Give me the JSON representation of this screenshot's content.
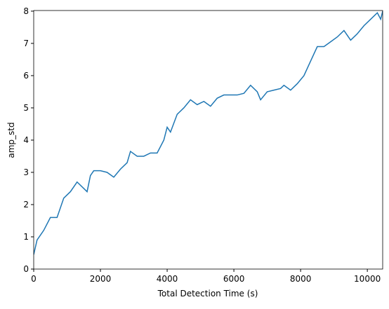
{
  "chart_data": {
    "type": "line",
    "xlabel": "Total Detection Time (s)",
    "ylabel": "amp_std",
    "x": [
      0,
      100,
      300,
      500,
      700,
      900,
      1100,
      1300,
      1500,
      1600,
      1700,
      1800,
      2000,
      2200,
      2400,
      2600,
      2800,
      2900,
      3100,
      3300,
      3500,
      3700,
      3900,
      4000,
      4100,
      4300,
      4500,
      4700,
      4900,
      5100,
      5300,
      5500,
      5700,
      5900,
      6100,
      6300,
      6500,
      6700,
      6800,
      7000,
      7200,
      7400,
      7500,
      7700,
      7900,
      8100,
      8300,
      8500,
      8700,
      8900,
      9100,
      9300,
      9500,
      9700,
      9900,
      10100,
      10300,
      10400,
      10460
    ],
    "series": [
      {
        "name": "amp_std",
        "color": "#1f77b4",
        "values": [
          0.45,
          0.9,
          1.2,
          1.6,
          1.6,
          2.2,
          2.4,
          2.7,
          2.5,
          2.4,
          2.9,
          3.05,
          3.05,
          3.0,
          2.85,
          3.1,
          3.3,
          3.65,
          3.5,
          3.5,
          3.6,
          3.6,
          4.0,
          4.4,
          4.25,
          4.8,
          5.0,
          5.25,
          5.1,
          5.2,
          5.05,
          5.3,
          5.4,
          5.4,
          5.4,
          5.45,
          5.7,
          5.5,
          5.25,
          5.5,
          5.55,
          5.6,
          5.7,
          5.55,
          5.75,
          6.0,
          6.45,
          6.9,
          6.9,
          7.05,
          7.2,
          7.4,
          7.1,
          7.3,
          7.55,
          7.75,
          7.95,
          7.75,
          8.0
        ]
      }
    ],
    "xlim": [
      0,
      10460
    ],
    "xticks": [
      0,
      2000,
      4000,
      6000,
      8000,
      10000
    ],
    "ylim": [
      0,
      8.02
    ],
    "yticks": [
      0,
      1,
      2,
      3,
      4,
      5,
      6,
      7,
      8
    ]
  }
}
